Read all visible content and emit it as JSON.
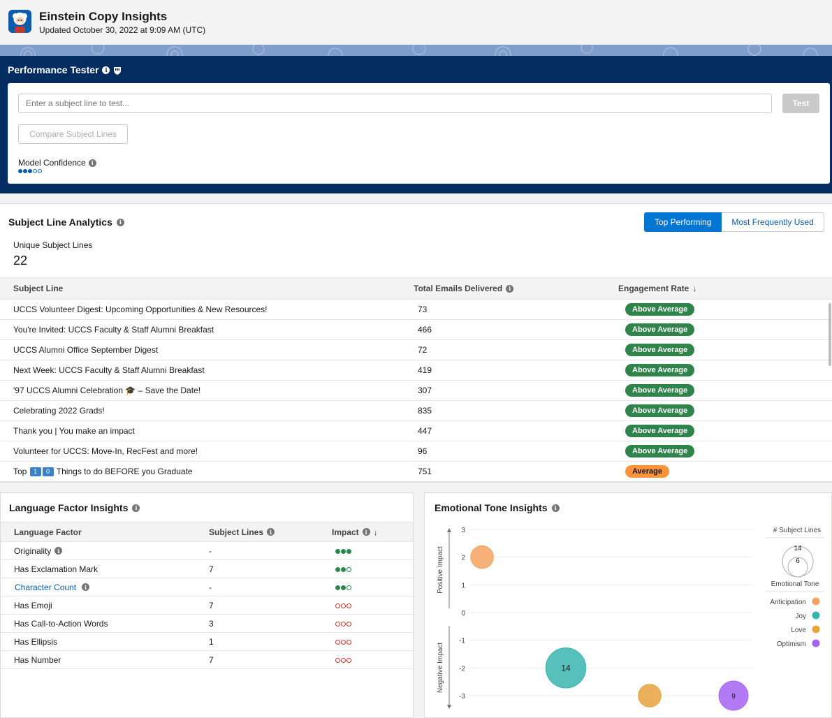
{
  "header": {
    "title": "Einstein Copy Insights",
    "subtitle": "Updated October 30, 2022 at 9:09 AM (UTC)"
  },
  "performance_tester": {
    "title": "Performance Tester",
    "input_placeholder": "Enter a subject line to test...",
    "test_label": "Test",
    "compare_label": "Compare Subject Lines",
    "confidence_label": "Model Confidence",
    "confidence_level": 3,
    "confidence_max": 5
  },
  "analytics": {
    "title": "Subject Line Analytics",
    "tabs": [
      "Top Performing",
      "Most Frequently Used"
    ],
    "unique_label": "Unique Subject Lines",
    "unique_value": "22",
    "columns": [
      "Subject Line",
      "Total Emails Delivered",
      "Engagement Rate"
    ],
    "rows": [
      {
        "subject": "UCCS Volunteer Digest: Upcoming Opportunities & New Resources!",
        "delivered": "73",
        "rate": "Above Average"
      },
      {
        "subject": "You're Invited: UCCS Faculty & Staff Alumni Breakfast",
        "delivered": "466",
        "rate": "Above Average"
      },
      {
        "subject": "UCCS Alumni Office September Digest",
        "delivered": "72",
        "rate": "Above Average"
      },
      {
        "subject": "Next Week: UCCS Faculty & Staff Alumni Breakfast",
        "delivered": "419",
        "rate": "Above Average"
      },
      {
        "subject_pre": "'97 UCCS Alumni Celebration ",
        "subject_emoji": "🎓",
        "subject_post": " – Save the Date!",
        "delivered": "307",
        "rate": "Above Average"
      },
      {
        "subject": "Celebrating 2022 Grads!",
        "delivered": "835",
        "rate": "Above Average"
      },
      {
        "subject": "Thank you | You make an impact",
        "delivered": "447",
        "rate": "Above Average"
      },
      {
        "subject": "Volunteer for UCCS: Move-In, RecFest and more!",
        "delivered": "96",
        "rate": "Above Average"
      },
      {
        "subject_pre": "Top ",
        "subject_box1": "1",
        "subject_box2": "0",
        "subject_post": " Things to do BEFORE you Graduate",
        "delivered": "751",
        "rate": "Average"
      }
    ]
  },
  "language": {
    "title": "Language Factor Insights",
    "columns": [
      "Language Factor",
      "Subject Lines",
      "Impact"
    ],
    "rows": [
      {
        "factor": "Originality",
        "info": true,
        "count": "-",
        "impact": "high-positive"
      },
      {
        "factor": "Has Exclamation Mark",
        "info": false,
        "count": "7",
        "impact": "medium-positive"
      },
      {
        "factor": "Character Count",
        "info": true,
        "link": true,
        "count": "-",
        "impact": "medium-positive"
      },
      {
        "factor": "Has Emoji",
        "info": false,
        "count": "7",
        "impact": "negative"
      },
      {
        "factor": "Has Call-to-Action Words",
        "info": false,
        "count": "3",
        "impact": "negative"
      },
      {
        "factor": "Has Ellipsis",
        "info": false,
        "count": "1",
        "impact": "negative"
      },
      {
        "factor": "Has Number",
        "info": false,
        "count": "7",
        "impact": "negative"
      }
    ]
  },
  "chart_data": {
    "type": "scatter",
    "title": "Emotional Tone Insights",
    "ylabel_positive": "Positive Impact",
    "ylabel_negative": "Negative Impact",
    "ylim": [
      -3,
      3
    ],
    "yticks": [
      "3",
      "2",
      "1",
      "0",
      "-1",
      "-2",
      "-3"
    ],
    "legend_size_title": "# Subject Lines",
    "legend_size_values": [
      "14",
      "6"
    ],
    "legend_color_title": "Emotional Tone",
    "series": [
      {
        "name": "Anticipation",
        "color": "#f4a460",
        "x": 0,
        "y": 2,
        "size": 6,
        "label": ""
      },
      {
        "name": "Joy",
        "color": "#3ab5ae",
        "x": 1,
        "y": -2,
        "size": 14,
        "label": "14"
      },
      {
        "name": "Love",
        "color": "#e8a33d",
        "x": 2,
        "y": -3,
        "size": 6,
        "label": ""
      },
      {
        "name": "Optimism",
        "color": "#a463f2",
        "x": 3,
        "y": -3,
        "size": 9,
        "label": "9"
      }
    ]
  }
}
